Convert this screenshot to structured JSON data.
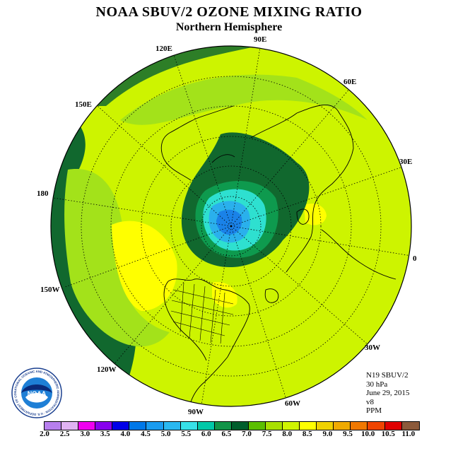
{
  "title": "NOAA SBUV/2 OZONE MIXING RATIO",
  "subtitle": "Northern Hemisphere",
  "longitude_labels": {
    "e90": "90E",
    "e120": "120E",
    "e60": "60E",
    "e150": "150E",
    "e30": "30E",
    "lon180": "180",
    "lon0": "0",
    "w150": "150W",
    "w30": "30W",
    "w120": "120W",
    "w60": "60W",
    "w90": "90W"
  },
  "info": {
    "instrument": "N19 SBUV/2",
    "level": "30 hPa",
    "date": "June 29, 2015",
    "version": "v8",
    "units": "PPM"
  },
  "logo": {
    "text": "NOAA",
    "ring_text": "NATIONAL OCEANIC AND ATMOSPHERIC ADMINISTRATION · U.S. DEPARTMENT OF COMMERCE"
  },
  "colorbar": {
    "colors": [
      "#b77fee",
      "#e0b3f3",
      "#f000f0",
      "#8800ee",
      "#0000e8",
      "#0078e8",
      "#1a9cf0",
      "#2ab8f0",
      "#37e0e8",
      "#00c8a8",
      "#119448",
      "#005e2c",
      "#5cbf00",
      "#a8e000",
      "#cff400",
      "#ffff00",
      "#f0d200",
      "#f0aa00",
      "#f07800",
      "#f04400",
      "#e00000",
      "#8c5a3a"
    ],
    "tick_labels": [
      "2.0",
      "2.5",
      "3.0",
      "3.5",
      "4.0",
      "4.5",
      "5.0",
      "5.5",
      "6.0",
      "6.5",
      "7.0",
      "7.5",
      "8.0",
      "8.5",
      "9.0",
      "9.5",
      "10.0",
      "10.5",
      "11.0"
    ]
  },
  "map_colors": {
    "dark_green": "#11682e",
    "light_green": "#a3e21a",
    "yellow_green": "#cdf400",
    "yellow": "#ffff00",
    "green": "#0e9a4e",
    "cyan": "#2ee0d0",
    "light_blue": "#2ab0ec",
    "blue": "#1a82e8"
  }
}
